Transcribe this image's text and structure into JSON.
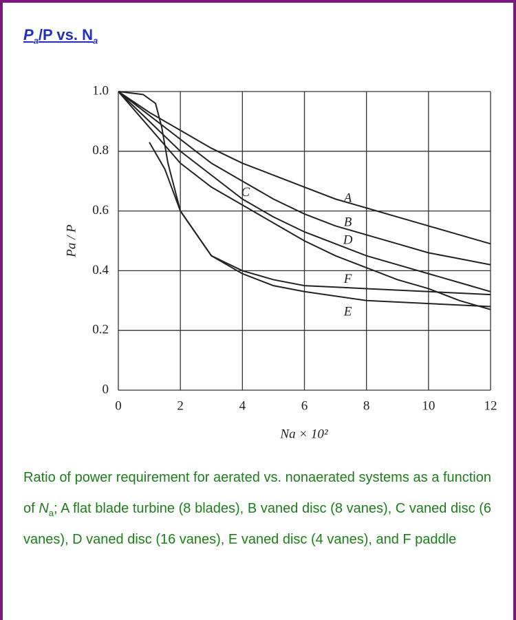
{
  "title_parts": [
    "P",
    "a",
    "/P vs. N",
    "a"
  ],
  "caption_parts": [
    "Ratio of power requirement for aerated vs. nonaerated systems as a function of ",
    "N",
    "a",
    "; A flat blade turbine (8 blades), B vaned disc (8 vanes), C vaned disc (6 vanes), D vaned disc (16 vanes), E vaned disc (4 vanes), and F paddle"
  ],
  "chart_data": {
    "type": "line",
    "y_label": "Pa / P",
    "x_label": "Na × 10²",
    "xlim": [
      0,
      12
    ],
    "ylim": [
      0,
      1
    ],
    "xticks": [
      0,
      2,
      4,
      6,
      8,
      10,
      12
    ],
    "yticks": [
      0,
      0.2,
      0.4,
      0.6,
      0.8,
      {
        "value": 1,
        "label": "1.0"
      }
    ],
    "grid": true,
    "color": "#222",
    "series": [
      {
        "name": "A",
        "x": [
          0,
          1,
          2,
          3,
          4,
          5,
          6,
          7,
          8,
          9,
          10,
          11,
          12
        ],
        "values": [
          1.0,
          0.93,
          0.87,
          0.81,
          0.76,
          0.72,
          0.68,
          0.64,
          0.61,
          0.58,
          0.55,
          0.52,
          0.49
        ]
      },
      {
        "name": "B",
        "x": [
          0,
          1,
          2,
          3,
          4,
          5,
          6,
          7,
          8,
          9,
          10,
          11,
          12
        ],
        "values": [
          1.0,
          0.92,
          0.84,
          0.76,
          0.7,
          0.64,
          0.59,
          0.55,
          0.52,
          0.49,
          0.46,
          0.44,
          0.42
        ]
      },
      {
        "name": "C",
        "x": [
          0,
          1,
          2,
          3,
          4,
          5,
          6,
          7,
          8,
          9,
          10,
          11,
          12
        ],
        "values": [
          1.0,
          0.88,
          0.76,
          0.68,
          0.62,
          0.56,
          0.5,
          0.45,
          0.41,
          0.37,
          0.34,
          0.3,
          0.27
        ]
      },
      {
        "name": "D",
        "x": [
          0,
          1,
          2,
          3,
          4,
          5,
          6,
          7,
          8,
          9,
          10,
          11,
          12
        ],
        "values": [
          1.0,
          0.9,
          0.8,
          0.72,
          0.64,
          0.58,
          0.53,
          0.49,
          0.45,
          0.42,
          0.39,
          0.36,
          0.33
        ]
      },
      {
        "name": "E",
        "x": [
          0,
          0.8,
          1.2,
          1.4,
          1.6,
          2,
          3,
          4,
          5,
          6,
          8,
          10,
          12
        ],
        "values": [
          1.0,
          0.99,
          0.96,
          0.88,
          0.76,
          0.6,
          0.45,
          0.39,
          0.35,
          0.33,
          0.3,
          0.29,
          0.28
        ]
      },
      {
        "name": "F",
        "x": [
          1,
          1.5,
          2,
          3,
          4,
          5,
          6,
          8,
          10,
          12
        ],
        "values": [
          0.83,
          0.74,
          0.6,
          0.45,
          0.4,
          0.37,
          0.35,
          0.34,
          0.33,
          0.32
        ]
      }
    ]
  }
}
